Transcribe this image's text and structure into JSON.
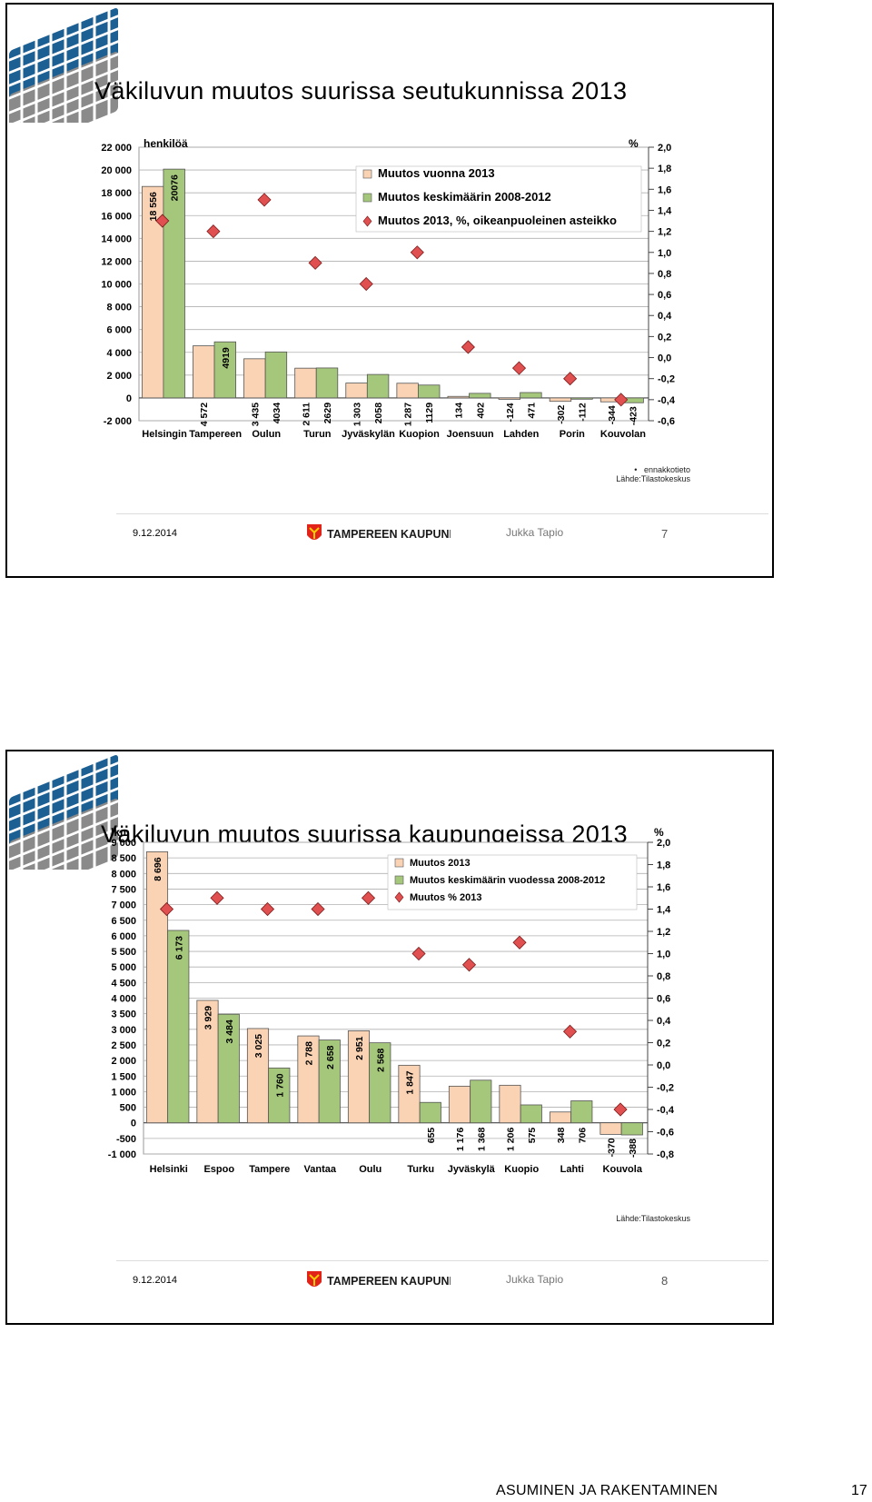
{
  "slides": [
    {
      "title": "Väkiluvun muutos suurissa seutukunnissa 2013",
      "notes": [
        "ennakkotieto",
        "Lähde:Tilastokeskus"
      ],
      "footer": {
        "date": "9.12.2014",
        "brand": "TAMPEREEN KAUPUNKI",
        "author": "Jukka Tapio",
        "page": "7"
      }
    },
    {
      "title": "Väkiluvun muutos suurissa kaupungeissa 2013",
      "notes": [
        "Lähde:Tilastokeskus"
      ],
      "footer": {
        "date": "9.12.2014",
        "brand": "TAMPEREEN KAUPUNKI",
        "author": "Jukka Tapio",
        "page": "8"
      }
    }
  ],
  "bottom": {
    "heading": "ASUMINEN JA RAKENTAMINEN",
    "page": "17"
  },
  "colors": {
    "bar_2013": "#f9d3b4",
    "bar_avg": "#a5c77c",
    "marker": "#e05050",
    "grid": "#b0b0b0"
  },
  "chart_data": [
    {
      "type": "bar",
      "ylabel": "henkilöä",
      "y2label": "%",
      "ylim": [
        -2000,
        22000
      ],
      "ystep": 2000,
      "ytick_labels": [
        "-2 000",
        "0",
        "2 000",
        "4 000",
        "6 000",
        "8 000",
        "10 000",
        "12 000",
        "14 000",
        "16 000",
        "18 000",
        "20 000",
        "22 000"
      ],
      "y2lim": [
        -0.6,
        2.0
      ],
      "y2step": 0.2,
      "y2tick_labels": [
        "-0,6",
        "-0,4",
        "-0,2",
        "0,0",
        "0,2",
        "0,4",
        "0,6",
        "0,8",
        "1,0",
        "1,2",
        "1,4",
        "1,6",
        "1,8",
        "2,0"
      ],
      "categories": [
        "Helsingin",
        "Tampereen",
        "Oulun",
        "Turun",
        "Jyväskylän",
        "Kuopion",
        "Joensuun",
        "Lahden",
        "Porin",
        "Kouvolan"
      ],
      "series": [
        {
          "name": "Muutos vuonna 2013",
          "values": [
            18556,
            4572,
            3435,
            2611,
            1303,
            1287,
            134,
            -124,
            -302,
            -344
          ],
          "labels": [
            "18 556",
            "4 572",
            "3 435",
            "2 611",
            "1 303",
            "1 287",
            "134",
            "-124",
            "-302",
            "-344"
          ]
        },
        {
          "name": "Muutos keskimäärin 2008-2012",
          "values": [
            20076,
            4919,
            4034,
            2629,
            2058,
            1129,
            402,
            471,
            -112,
            -423
          ],
          "labels": [
            "20076",
            "4919",
            "4034",
            "2629",
            "2058",
            "1129",
            "402",
            "471",
            "-112",
            "-423"
          ]
        },
        {
          "name": "Muutos 2013, %, oikeanpuoleinen asteikko",
          "axis": "right",
          "values": [
            1.3,
            1.2,
            1.5,
            0.9,
            0.7,
            1.0,
            0.1,
            -0.1,
            -0.2,
            -0.4
          ]
        }
      ],
      "legend": "top-right",
      "grid": true
    },
    {
      "type": "bar",
      "ylabel": "lkm",
      "y2label": "%",
      "ylim": [
        -1000,
        9000
      ],
      "ystep": 500,
      "ytick_labels": [
        "-1 000",
        "-500",
        "0",
        "500",
        "1 000",
        "1 500",
        "2 000",
        "2 500",
        "3 000",
        "3 500",
        "4 000",
        "4 500",
        "5 000",
        "5 500",
        "6 000",
        "6 500",
        "7 000",
        "7 500",
        "8 000",
        "8 500",
        "9 000"
      ],
      "y2lim": [
        -0.8,
        2.0
      ],
      "y2step": 0.2,
      "y2tick_labels": [
        "-0,8",
        "-0,6",
        "-0,4",
        "-0,2",
        "0,0",
        "0,2",
        "0,4",
        "0,6",
        "0,8",
        "1,0",
        "1,2",
        "1,4",
        "1,6",
        "1,8",
        "2,0"
      ],
      "categories": [
        "Helsinki",
        "Espoo",
        "Tampere",
        "Vantaa",
        "Oulu",
        "Turku",
        "Jyväskylä",
        "Kuopio",
        "Lahti",
        "Kouvola"
      ],
      "series": [
        {
          "name": "Muutos 2013",
          "values": [
            8696,
            3929,
            3025,
            2788,
            2951,
            1847,
            1176,
            1206,
            348,
            -370
          ],
          "labels": [
            "8 696",
            "3 929",
            "3 025",
            "2 788",
            "2 951",
            "1 847",
            "1 176",
            "1 206",
            "348",
            "-370"
          ]
        },
        {
          "name": "Muutos keskimäärin vuodessa 2008-2012",
          "values": [
            6173,
            3484,
            1760,
            2658,
            2568,
            655,
            1368,
            575,
            706,
            -388
          ],
          "labels": [
            "6 173",
            "3 484",
            "1 760",
            "2 658",
            "2 568",
            "655",
            "1 368",
            "575",
            "706",
            "-388"
          ]
        },
        {
          "name": "Muutos % 2013",
          "axis": "right",
          "values": [
            1.4,
            1.5,
            1.4,
            1.4,
            1.5,
            1.0,
            0.9,
            1.1,
            0.3,
            -0.4
          ]
        }
      ],
      "legend": "top-right",
      "grid": true
    }
  ]
}
